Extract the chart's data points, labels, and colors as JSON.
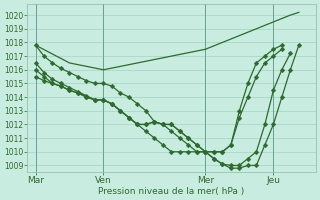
{
  "background_color": "#c8ece0",
  "grid_color": "#99ccbb",
  "line_color": "#2d6b2d",
  "xlabel": "Pression niveau de la mer( hPa )",
  "ylim": [
    1008.5,
    1020.8
  ],
  "yticks": [
    1009,
    1010,
    1011,
    1012,
    1013,
    1014,
    1015,
    1016,
    1017,
    1018,
    1019,
    1020
  ],
  "xtick_labels": [
    "Mar",
    "Ven",
    "Mer",
    "Jeu"
  ],
  "xtick_positions": [
    0,
    8,
    20,
    28
  ],
  "xlim": [
    -1,
    33
  ],
  "total_x": 32,
  "series": [
    {
      "x": [
        0,
        1,
        2,
        3,
        4,
        5,
        6,
        7,
        8,
        9,
        10,
        11,
        12,
        13,
        14,
        15,
        16,
        17,
        18,
        19,
        20,
        21,
        22,
        23,
        24,
        25,
        26,
        27,
        28,
        29,
        30,
        31
      ],
      "y": [
        1017.8,
        1017.0,
        1016.5,
        1016.1,
        1015.8,
        1015.5,
        1015.2,
        1015.0,
        1015.0,
        1014.8,
        1014.3,
        1014.0,
        1013.5,
        1013.0,
        1012.2,
        1012.0,
        1012.0,
        1011.5,
        1011.0,
        1010.5,
        1010.0,
        1009.5,
        1009.1,
        1008.8,
        1008.8,
        1009.0,
        1009.0,
        1010.5,
        1012.0,
        1014.0,
        1016.0,
        1017.8
      ],
      "has_markers": true
    },
    {
      "x": [
        0,
        1,
        2,
        3,
        4,
        5,
        6,
        7,
        8,
        9,
        10,
        11,
        12,
        13,
        14,
        15,
        16,
        17,
        18,
        19,
        20,
        21,
        22,
        23,
        24,
        25,
        26,
        27,
        28,
        29,
        30
      ],
      "y": [
        1016.5,
        1015.8,
        1015.3,
        1015.0,
        1014.7,
        1014.4,
        1014.1,
        1013.8,
        1013.8,
        1013.5,
        1013.0,
        1012.5,
        1012.0,
        1012.0,
        1012.2,
        1012.0,
        1011.5,
        1011.0,
        1010.5,
        1010.0,
        1010.0,
        1009.5,
        1009.1,
        1009.0,
        1009.0,
        1009.5,
        1010.0,
        1012.0,
        1014.5,
        1016.0,
        1017.2
      ],
      "has_markers": true
    },
    {
      "x": [
        0,
        1,
        2,
        3,
        4,
        5,
        6,
        7,
        8,
        9,
        10,
        11,
        12,
        13,
        14,
        15,
        16,
        17,
        18,
        19,
        20,
        21,
        22,
        23,
        24,
        25,
        26,
        27,
        28,
        29
      ],
      "y": [
        1016.0,
        1015.5,
        1015.0,
        1014.8,
        1014.5,
        1014.3,
        1014.0,
        1013.8,
        1013.8,
        1013.5,
        1013.0,
        1012.5,
        1012.0,
        1011.5,
        1011.0,
        1010.5,
        1010.0,
        1010.0,
        1010.0,
        1010.0,
        1010.0,
        1010.0,
        1010.0,
        1010.5,
        1012.5,
        1014.0,
        1015.5,
        1016.5,
        1017.0,
        1017.5
      ],
      "has_markers": true
    },
    {
      "x": [
        0,
        1,
        2,
        3,
        4,
        5,
        6,
        7,
        8,
        9,
        10,
        11,
        12,
        13,
        14,
        15,
        16,
        17,
        18,
        19,
        20,
        21,
        22,
        23,
        24,
        25,
        26,
        27,
        28,
        29
      ],
      "y": [
        1015.5,
        1015.2,
        1015.0,
        1014.8,
        1014.5,
        1014.3,
        1014.0,
        1013.8,
        1013.8,
        1013.5,
        1013.0,
        1012.5,
        1012.0,
        1012.0,
        1012.2,
        1012.0,
        1012.0,
        1011.5,
        1011.0,
        1010.5,
        1010.0,
        1010.0,
        1010.0,
        1010.5,
        1013.0,
        1015.0,
        1016.5,
        1017.0,
        1017.5,
        1017.8
      ],
      "has_markers": true
    },
    {
      "x": [
        0,
        4,
        8,
        12,
        16,
        20,
        24,
        28,
        30,
        31
      ],
      "y": [
        1017.8,
        1016.5,
        1016.0,
        1016.5,
        1017.0,
        1017.5,
        1018.5,
        1019.5,
        1020.0,
        1020.2
      ],
      "has_markers": false
    }
  ],
  "marker_size": 2.5,
  "linewidth": 0.9
}
